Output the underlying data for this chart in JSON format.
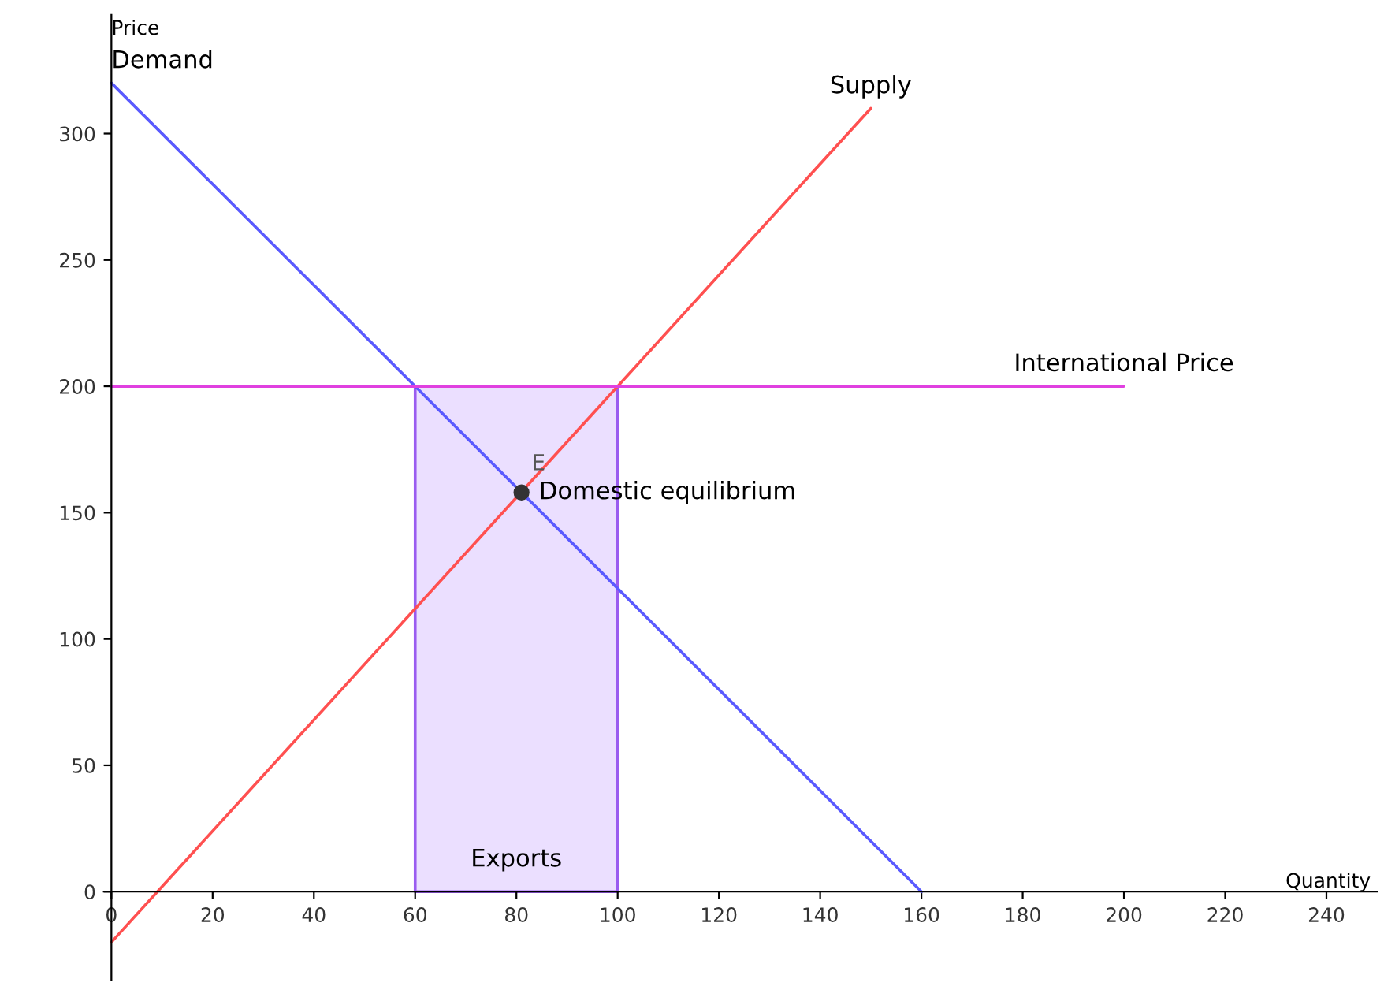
{
  "chart_data": {
    "type": "line",
    "xlabel": "Quantity",
    "ylabel": "Price",
    "xlim": [
      -1.5,
      250
    ],
    "ylim": [
      -35,
      347
    ],
    "xticks": [
      0,
      20,
      40,
      60,
      80,
      100,
      120,
      140,
      160,
      180,
      200,
      220,
      240
    ],
    "yticks": [
      0,
      50,
      100,
      150,
      200,
      250,
      300
    ],
    "grid": false,
    "series": [
      {
        "name": "Exports",
        "type": "area",
        "color": "#9a5cf0",
        "x": [
          60,
          100
        ],
        "values": [
          200,
          200
        ]
      },
      {
        "name": "Demand",
        "type": "line",
        "color": "#5a5aff",
        "x": [
          0,
          160
        ],
        "values": [
          320,
          0
        ]
      },
      {
        "name": "Supply",
        "type": "line",
        "color": "#ff5050",
        "x": [
          0,
          150
        ],
        "values": [
          -20,
          310
        ]
      },
      {
        "name": "International Price",
        "type": "line",
        "color": "#e040e0",
        "x": [
          0,
          200
        ],
        "values": [
          200,
          200
        ]
      },
      {
        "name": "E",
        "type": "scatter",
        "color": "#333333",
        "x": [
          81
        ],
        "values": [
          158
        ]
      }
    ],
    "annotations": [
      {
        "text": "Domestic equilibrium",
        "x": 81,
        "y": 158
      }
    ]
  }
}
